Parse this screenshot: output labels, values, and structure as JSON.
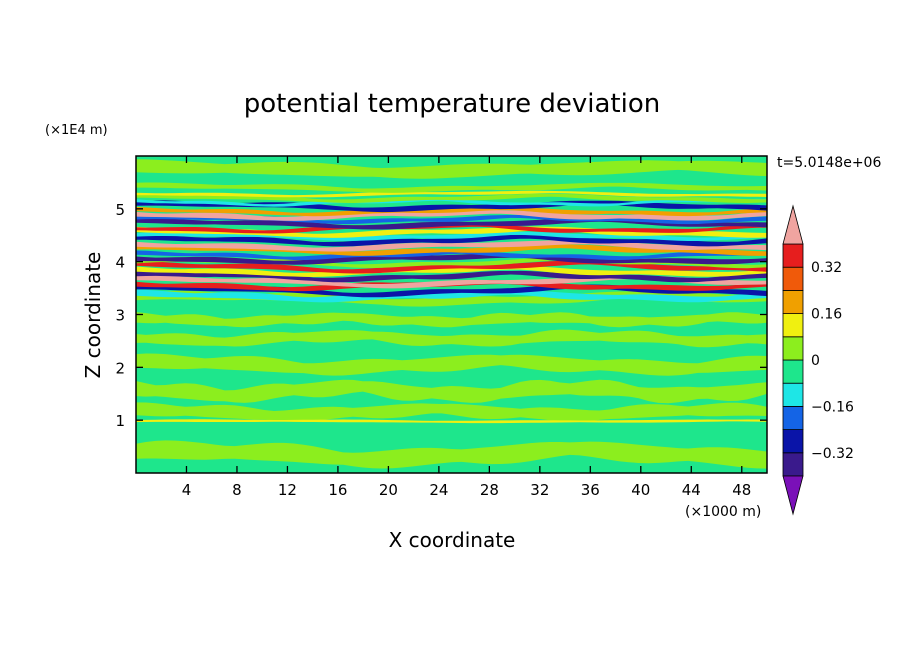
{
  "chart_data": {
    "type": "heatmap",
    "title": "potential temperature deviation",
    "xlabel": "X coordinate",
    "ylabel": "Z coordinate",
    "x_unit": "(×1000 m)",
    "y_unit": "(×1E4 m)",
    "time_label": "t=5.0148e+06",
    "xlim": [
      0,
      50
    ],
    "ylim": [
      0,
      6
    ],
    "x_ticks": [
      4,
      8,
      12,
      16,
      20,
      24,
      28,
      32,
      36,
      40,
      44,
      48
    ],
    "y_ticks": [
      1,
      2,
      3,
      4,
      5
    ],
    "colorbar": {
      "levels": [
        -0.4,
        -0.32,
        -0.24,
        -0.16,
        -0.08,
        0,
        0.08,
        0.16,
        0.24,
        0.32,
        0.4
      ],
      "tick_labels": [
        {
          "value": 0.32,
          "label": "0.32"
        },
        {
          "value": 0.16,
          "label": "0.16"
        },
        {
          "value": 0,
          "label": "0"
        },
        {
          "value": -0.16,
          "label": "−0.16"
        },
        {
          "value": -0.32,
          "label": "−0.32"
        }
      ],
      "colors_low_to_high": [
        "#7a10b8",
        "#3a1a8c",
        "#0a14a8",
        "#1464e6",
        "#1ee6e6",
        "#1ee68c",
        "#8cee1e",
        "#f0f010",
        "#f0a000",
        "#f05a0a",
        "#e61e1e",
        "#f0a4a0"
      ]
    },
    "field_description_by_height": [
      {
        "z_range": [
          0,
          3.1
        ],
        "values": "mostly -0.08 to 0.08, alternating green / light-green bands"
      },
      {
        "z_range": [
          3.1,
          5.5
        ],
        "values": "strong alternating layers from about -0.4 to +0.4"
      },
      {
        "z_range": [
          5.5,
          6
        ],
        "values": "-0.08 to 0.08"
      }
    ]
  }
}
